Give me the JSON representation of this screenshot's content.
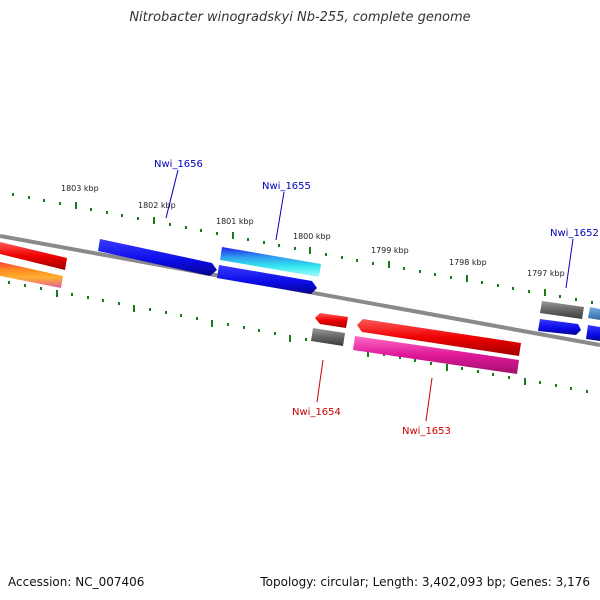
{
  "title": "Nitrobacter winogradskyi Nb-255, complete genome",
  "footer": {
    "accession": "Accession: NC_007406",
    "summary": "Topology: circular; Length: 3,402,093 bp; Genes: 3,176"
  },
  "colors": {
    "backbone": "#888888",
    "tick": "#1a7a1a",
    "forward_gene_label": "#0000bb",
    "reverse_gene_label": "#cc0000",
    "blue": "#0a0aee",
    "red": "#ee0000",
    "pink": "#e0189a",
    "gray": "#666666",
    "cyan": "#33e0e8"
  },
  "kbp_labels": [
    "1803 kbp",
    "1802 kbp",
    "1801 kbp",
    "1800 kbp",
    "1799 kbp",
    "1798 kbp",
    "1797 kbp"
  ],
  "gene_labels": {
    "nwi_1656": "Nwi_1656",
    "nwi_1655": "Nwi_1655",
    "nwi_1652": "Nwi_1652",
    "nwi_1654": "Nwi_1654",
    "nwi_1653": "Nwi_1653"
  }
}
